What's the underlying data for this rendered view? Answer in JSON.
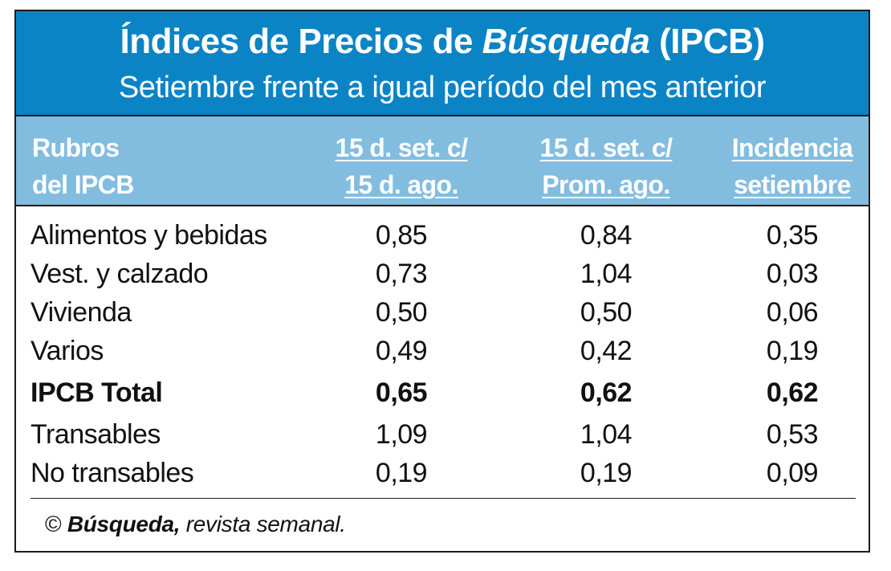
{
  "chart_data": {
    "type": "table",
    "title_main": "Índices de Precios de ",
    "title_italic": "Búsqueda",
    "title_end": " (IPCB)",
    "subtitle": "Setiembre frente a igual período del mes anterior",
    "columns": [
      {
        "line1": "Rubros",
        "line2": "del IPCB"
      },
      {
        "line1": "15 d. set. c/",
        "line2": "15 d. ago."
      },
      {
        "line1": "15 d. set. c/",
        "line2": "Prom. ago."
      },
      {
        "line1": "Incidencia",
        "line2": "setiembre"
      }
    ],
    "rows": [
      {
        "label": "Alimentos y bebidas",
        "values": [
          "0,85",
          "0,84",
          "0,35"
        ],
        "bold": false
      },
      {
        "label": "Vest. y calzado",
        "values": [
          "0,73",
          "1,04",
          "0,03"
        ],
        "bold": false
      },
      {
        "label": "Vivienda",
        "values": [
          "0,50",
          "0,50",
          "0,06"
        ],
        "bold": false
      },
      {
        "label": "Varios",
        "values": [
          "0,49",
          "0,42",
          "0,19"
        ],
        "bold": false
      },
      {
        "label": "IPCB Total",
        "values": [
          "0,65",
          "0,62",
          "0,62"
        ],
        "bold": true
      },
      {
        "label": "Transables",
        "values": [
          "1,09",
          "1,04",
          "0,53"
        ],
        "bold": false
      },
      {
        "label": "No transables",
        "values": [
          "0,19",
          "0,19",
          "0,09"
        ],
        "bold": false
      }
    ],
    "footer_copy": "© ",
    "footer_brand": "Búsqueda,",
    "footer_rest": " revista semanal."
  },
  "colors": {
    "title_band": "#0b84c6",
    "header_band": "#82bde0",
    "border": "#1c1c1c",
    "text": "#111111"
  }
}
